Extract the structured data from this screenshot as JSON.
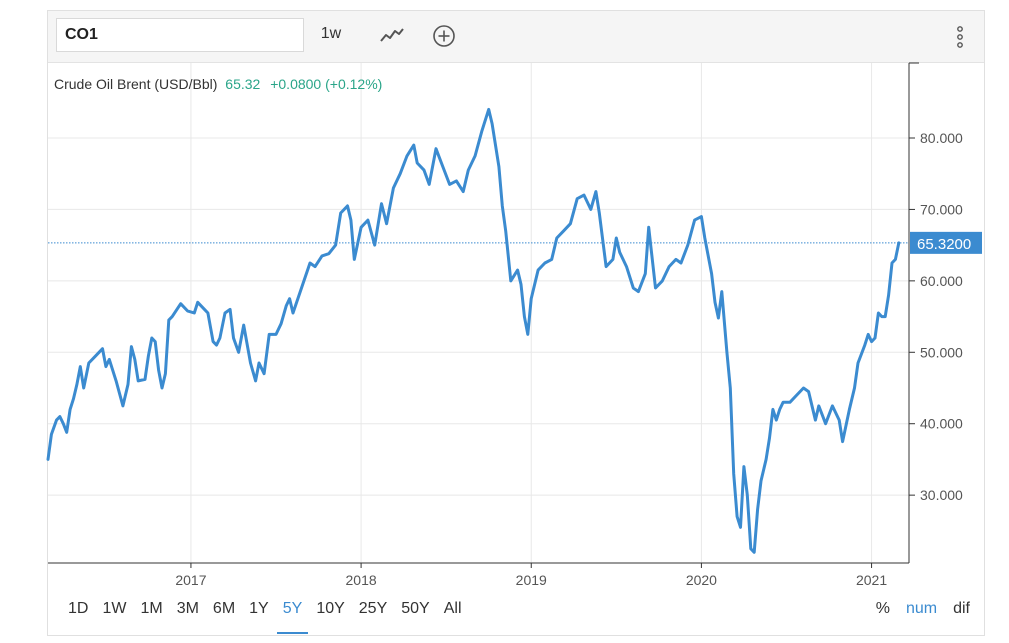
{
  "toolbar": {
    "symbol": "CO1",
    "interval": "1w",
    "chart_type_icon": "line-chart-icon",
    "add_icon": "plus-circle-icon",
    "menu_icon": "vertical-dots-icon"
  },
  "quote": {
    "name": "Crude Oil Brent (USD/Bbl)",
    "price": "65.32",
    "change": "+0.0800 (+0.12%)",
    "last_label": "65.3200"
  },
  "ranges": [
    "1D",
    "1W",
    "1M",
    "3M",
    "6M",
    "1Y",
    "5Y",
    "10Y",
    "25Y",
    "50Y",
    "All"
  ],
  "active_range": "5Y",
  "scale_options": [
    "%",
    "num",
    "dif"
  ],
  "active_scale": "num",
  "colors": {
    "line": "#3b8bd0",
    "positive": "#2aa589",
    "accent": "#3b8bd0",
    "grid": "#e8e8e8"
  },
  "chart_data": {
    "type": "line",
    "title": "Crude Oil Brent (USD/Bbl)",
    "x_ticks": [
      "2017",
      "2018",
      "2019",
      "2020",
      "2021"
    ],
    "y_ticks": [
      "30.000",
      "40.000",
      "50.000",
      "60.000",
      "70.000",
      "80.000"
    ],
    "xlim": [
      2016.16,
      2021.22
    ],
    "ylim": [
      20.5,
      90.5
    ],
    "last_value": 65.32,
    "grid": true,
    "series": [
      {
        "points": [
          [
            2016.16,
            35.0
          ],
          [
            2016.18,
            38.5
          ],
          [
            2016.21,
            40.5
          ],
          [
            2016.23,
            41.0
          ],
          [
            2016.25,
            40.0
          ],
          [
            2016.27,
            38.8
          ],
          [
            2016.29,
            42.0
          ],
          [
            2016.31,
            43.5
          ],
          [
            2016.33,
            45.5
          ],
          [
            2016.35,
            48.0
          ],
          [
            2016.37,
            45.0
          ],
          [
            2016.4,
            48.5
          ],
          [
            2016.44,
            49.5
          ],
          [
            2016.48,
            50.5
          ],
          [
            2016.5,
            48.0
          ],
          [
            2016.52,
            49.0
          ],
          [
            2016.56,
            46.0
          ],
          [
            2016.6,
            42.5
          ],
          [
            2016.63,
            45.5
          ],
          [
            2016.65,
            50.8
          ],
          [
            2016.67,
            49.0
          ],
          [
            2016.69,
            46.0
          ],
          [
            2016.73,
            46.2
          ],
          [
            2016.75,
            49.5
          ],
          [
            2016.77,
            52.0
          ],
          [
            2016.79,
            51.5
          ],
          [
            2016.81,
            47.5
          ],
          [
            2016.83,
            45.0
          ],
          [
            2016.85,
            47.0
          ],
          [
            2016.87,
            54.5
          ],
          [
            2016.89,
            55.0
          ],
          [
            2016.94,
            56.8
          ],
          [
            2016.98,
            55.8
          ],
          [
            2017.02,
            55.5
          ],
          [
            2017.04,
            57.0
          ],
          [
            2017.08,
            56.0
          ],
          [
            2017.1,
            55.5
          ],
          [
            2017.13,
            51.5
          ],
          [
            2017.15,
            51.0
          ],
          [
            2017.17,
            52.0
          ],
          [
            2017.2,
            55.5
          ],
          [
            2017.23,
            56.0
          ],
          [
            2017.25,
            52.0
          ],
          [
            2017.28,
            50.0
          ],
          [
            2017.31,
            53.8
          ],
          [
            2017.35,
            48.5
          ],
          [
            2017.38,
            46.0
          ],
          [
            2017.4,
            48.5
          ],
          [
            2017.43,
            47.0
          ],
          [
            2017.46,
            52.5
          ],
          [
            2017.5,
            52.5
          ],
          [
            2017.53,
            54.0
          ],
          [
            2017.56,
            56.5
          ],
          [
            2017.58,
            57.5
          ],
          [
            2017.6,
            55.5
          ],
          [
            2017.65,
            59.0
          ],
          [
            2017.7,
            62.5
          ],
          [
            2017.73,
            62.0
          ],
          [
            2017.77,
            63.5
          ],
          [
            2017.81,
            63.8
          ],
          [
            2017.85,
            65.0
          ],
          [
            2017.88,
            69.5
          ],
          [
            2017.92,
            70.5
          ],
          [
            2017.94,
            68.5
          ],
          [
            2017.96,
            63.0
          ],
          [
            2018.0,
            67.5
          ],
          [
            2018.04,
            68.5
          ],
          [
            2018.08,
            65.0
          ],
          [
            2018.12,
            70.8
          ],
          [
            2018.15,
            68.0
          ],
          [
            2018.19,
            73.0
          ],
          [
            2018.23,
            75.0
          ],
          [
            2018.27,
            77.5
          ],
          [
            2018.31,
            79.0
          ],
          [
            2018.33,
            76.5
          ],
          [
            2018.37,
            75.5
          ],
          [
            2018.4,
            73.5
          ],
          [
            2018.44,
            78.5
          ],
          [
            2018.48,
            76.0
          ],
          [
            2018.52,
            73.5
          ],
          [
            2018.56,
            74.0
          ],
          [
            2018.6,
            72.5
          ],
          [
            2018.63,
            75.5
          ],
          [
            2018.67,
            77.5
          ],
          [
            2018.71,
            81.0
          ],
          [
            2018.75,
            84.0
          ],
          [
            2018.77,
            82.0
          ],
          [
            2018.81,
            76.0
          ],
          [
            2018.83,
            70.5
          ],
          [
            2018.85,
            67.0
          ],
          [
            2018.88,
            60.0
          ],
          [
            2018.92,
            61.5
          ],
          [
            2018.94,
            59.5
          ],
          [
            2018.96,
            55.0
          ],
          [
            2018.98,
            52.5
          ],
          [
            2019.0,
            57.5
          ],
          [
            2019.04,
            61.5
          ],
          [
            2019.08,
            62.5
          ],
          [
            2019.12,
            63.0
          ],
          [
            2019.15,
            66.0
          ],
          [
            2019.19,
            67.0
          ],
          [
            2019.23,
            68.0
          ],
          [
            2019.27,
            71.5
          ],
          [
            2019.31,
            72.0
          ],
          [
            2019.35,
            70.0
          ],
          [
            2019.38,
            72.5
          ],
          [
            2019.4,
            69.5
          ],
          [
            2019.44,
            62.0
          ],
          [
            2019.48,
            63.0
          ],
          [
            2019.5,
            66.0
          ],
          [
            2019.52,
            64.0
          ],
          [
            2019.56,
            62.0
          ],
          [
            2019.6,
            59.0
          ],
          [
            2019.63,
            58.5
          ],
          [
            2019.67,
            61.0
          ],
          [
            2019.69,
            67.5
          ],
          [
            2019.73,
            59.0
          ],
          [
            2019.77,
            60.0
          ],
          [
            2019.81,
            62.0
          ],
          [
            2019.85,
            63.0
          ],
          [
            2019.88,
            62.5
          ],
          [
            2019.92,
            65.0
          ],
          [
            2019.96,
            68.5
          ],
          [
            2020.0,
            69.0
          ],
          [
            2020.02,
            66.0
          ],
          [
            2020.06,
            61.0
          ],
          [
            2020.08,
            57.0
          ],
          [
            2020.1,
            54.8
          ],
          [
            2020.12,
            58.5
          ],
          [
            2020.15,
            50.0
          ],
          [
            2020.17,
            45.0
          ],
          [
            2020.19,
            33.0
          ],
          [
            2020.21,
            27.0
          ],
          [
            2020.23,
            25.5
          ],
          [
            2020.25,
            34.0
          ],
          [
            2020.27,
            30.0
          ],
          [
            2020.29,
            22.5
          ],
          [
            2020.31,
            22.0
          ],
          [
            2020.33,
            28.0
          ],
          [
            2020.35,
            32.0
          ],
          [
            2020.38,
            35.0
          ],
          [
            2020.4,
            38.0
          ],
          [
            2020.42,
            42.0
          ],
          [
            2020.44,
            40.5
          ],
          [
            2020.46,
            42.0
          ],
          [
            2020.48,
            43.0
          ],
          [
            2020.52,
            43.0
          ],
          [
            2020.56,
            44.0
          ],
          [
            2020.6,
            45.0
          ],
          [
            2020.63,
            44.5
          ],
          [
            2020.67,
            40.5
          ],
          [
            2020.69,
            42.5
          ],
          [
            2020.73,
            40.0
          ],
          [
            2020.77,
            42.5
          ],
          [
            2020.81,
            40.5
          ],
          [
            2020.83,
            37.5
          ],
          [
            2020.87,
            42.0
          ],
          [
            2020.9,
            45.0
          ],
          [
            2020.92,
            48.5
          ],
          [
            2020.96,
            51.0
          ],
          [
            2020.98,
            52.5
          ],
          [
            2021.0,
            51.5
          ],
          [
            2021.02,
            52.0
          ],
          [
            2021.04,
            55.5
          ],
          [
            2021.06,
            55.0
          ],
          [
            2021.08,
            55.0
          ],
          [
            2021.1,
            58.0
          ],
          [
            2021.12,
            62.5
          ],
          [
            2021.14,
            63.0
          ],
          [
            2021.16,
            65.32
          ]
        ]
      }
    ]
  }
}
